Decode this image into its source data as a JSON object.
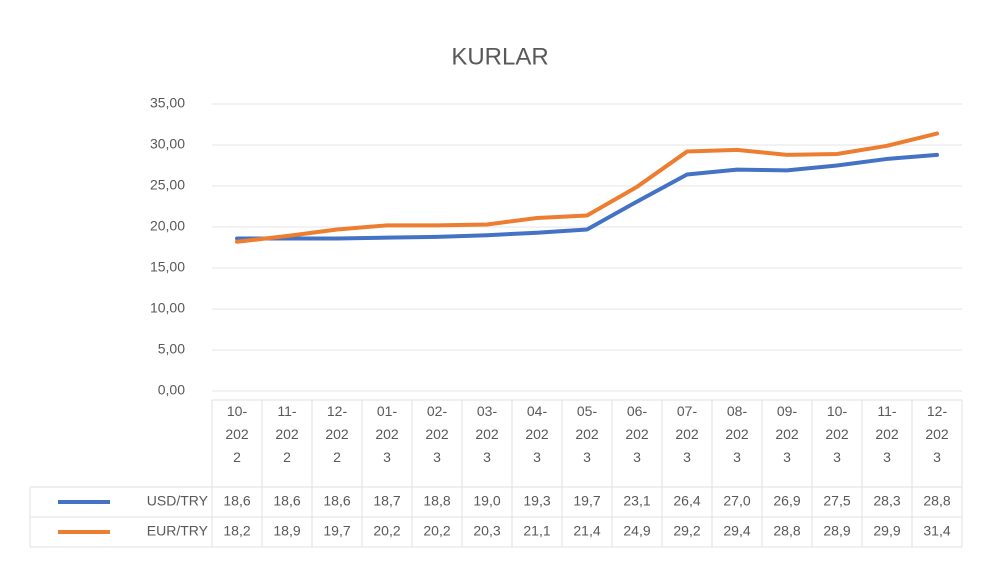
{
  "chart_data": {
    "type": "line",
    "title": "KURLAR",
    "categories": [
      "10-2022",
      "11-2022",
      "12-2022",
      "01-2023",
      "02-2023",
      "03-2023",
      "04-2023",
      "05-2023",
      "06-2023",
      "07-2023",
      "08-2023",
      "09-2023",
      "10-2023",
      "11-2023",
      "12-2023"
    ],
    "series": [
      {
        "name": "USD/TRY",
        "color": "#4472c4",
        "values": [
          18.6,
          18.6,
          18.6,
          18.7,
          18.8,
          19.0,
          19.3,
          19.7,
          23.1,
          26.4,
          27.0,
          26.9,
          27.5,
          28.3,
          28.8
        ],
        "value_labels": [
          "18,6",
          "18,6",
          "18,6",
          "18,7",
          "18,8",
          "19,0",
          "19,3",
          "19,7",
          "23,1",
          "26,4",
          "27,0",
          "26,9",
          "27,5",
          "28,3",
          "28,8"
        ]
      },
      {
        "name": "EUR/TRY",
        "color": "#ed7d31",
        "values": [
          18.2,
          18.9,
          19.7,
          20.2,
          20.2,
          20.3,
          21.1,
          21.4,
          24.9,
          29.2,
          29.4,
          28.8,
          28.9,
          29.9,
          31.4
        ],
        "value_labels": [
          "18,2",
          "18,9",
          "19,7",
          "20,2",
          "20,2",
          "20,3",
          "21,1",
          "21,4",
          "24,9",
          "29,2",
          "29,4",
          "28,8",
          "28,9",
          "29,9",
          "31,4"
        ]
      }
    ],
    "ylim": [
      0,
      35
    ],
    "yticks": [
      {
        "value": 0,
        "label": "0,00"
      },
      {
        "value": 5,
        "label": "5,00"
      },
      {
        "value": 10,
        "label": "10,00"
      },
      {
        "value": 15,
        "label": "15,00"
      },
      {
        "value": 20,
        "label": "20,00"
      },
      {
        "value": 25,
        "label": "25,00"
      },
      {
        "value": 30,
        "label": "30,00"
      },
      {
        "value": 35,
        "label": "35,00"
      }
    ],
    "grid": true
  }
}
